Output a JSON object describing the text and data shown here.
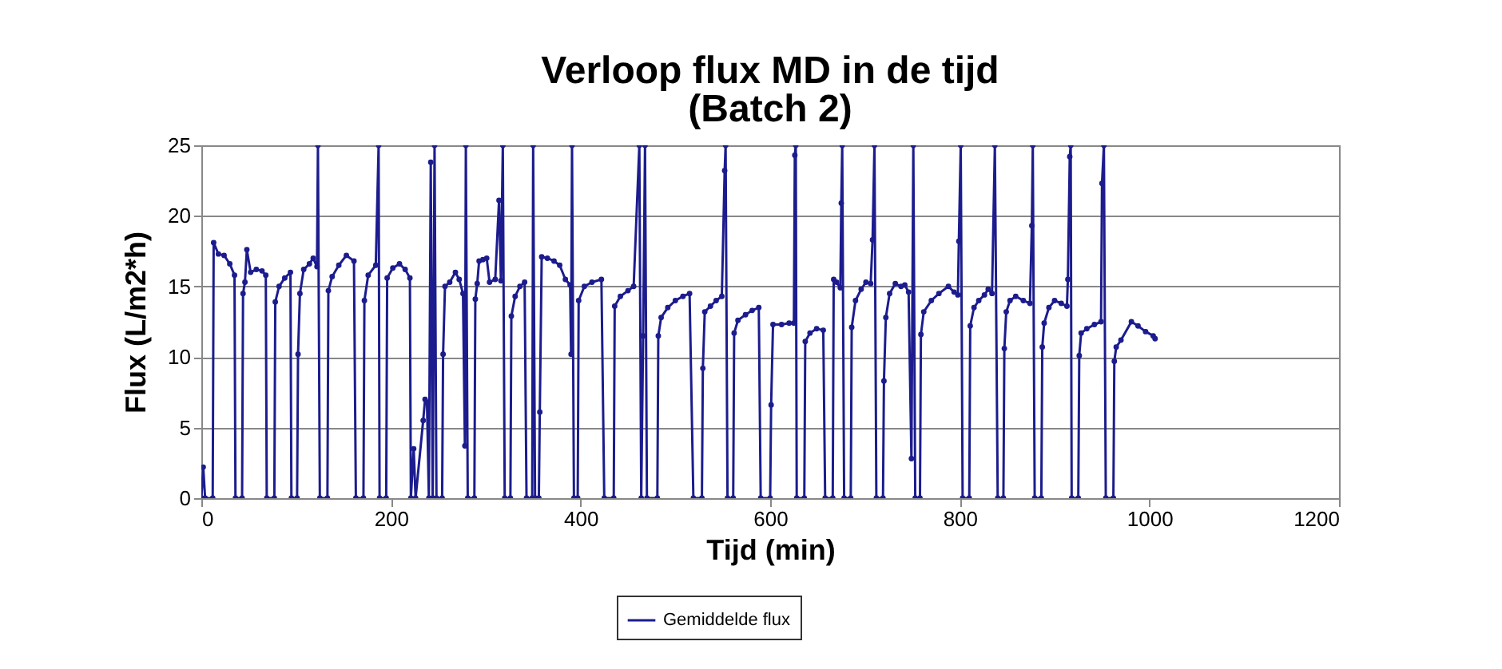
{
  "chart_data": {
    "type": "line",
    "title": "Verloop flux MD in de tijd",
    "subtitle": "(Batch 2)",
    "xlabel": "Tijd (min)",
    "ylabel": "Flux (L/m2*h)",
    "x": [
      0,
      2,
      4,
      12,
      13,
      18,
      24,
      30,
      35,
      36,
      43,
      44,
      46,
      48,
      52,
      58,
      64,
      68,
      69,
      77,
      78,
      82,
      88,
      94,
      95,
      101,
      102,
      104,
      108,
      114,
      118,
      122,
      123,
      125,
      133,
      134,
      138,
      145,
      153,
      161,
      163,
      171,
      172,
      176,
      184,
      187,
      188,
      195,
      196,
      202,
      209,
      215,
      220,
      221,
      224,
      226,
      234,
      236,
      238,
      240,
      242,
      244,
      246,
      248,
      254,
      255,
      257,
      262,
      268,
      272,
      276,
      278,
      279,
      281,
      288,
      289,
      291,
      293,
      297,
      301,
      304,
      310,
      314,
      316,
      318,
      320,
      326,
      327,
      331,
      336,
      341,
      343,
      349,
      350,
      352,
      356,
      357,
      359,
      365,
      372,
      378,
      384,
      389,
      390,
      391,
      393,
      397,
      398,
      404,
      412,
      422,
      425,
      435,
      436,
      442,
      450,
      456,
      462,
      464,
      466,
      468,
      470,
      481,
      482,
      485,
      492,
      500,
      508,
      515,
      519,
      528,
      529,
      531,
      537,
      543,
      549,
      552,
      553,
      555,
      561,
      562,
      566,
      574,
      581,
      588,
      590,
      600,
      601,
      603,
      612,
      620,
      625,
      626,
      627,
      628,
      636,
      637,
      642,
      649,
      656,
      658,
      666,
      667,
      670,
      674,
      675,
      676,
      678,
      685,
      686,
      690,
      696,
      701,
      706,
      708,
      710,
      712,
      719,
      720,
      722,
      726,
      732,
      738,
      742,
      746,
      749,
      751,
      753,
      758,
      759,
      762,
      770,
      778,
      788,
      794,
      798,
      799,
      801,
      803,
      810,
      811,
      815,
      820,
      826,
      830,
      834,
      837,
      840,
      846,
      847,
      849,
      853,
      859,
      867,
      874,
      876,
      877,
      879,
      886,
      887,
      889,
      894,
      900,
      907,
      913,
      914,
      916,
      917,
      918,
      925,
      926,
      928,
      934,
      942,
      949,
      950,
      952,
      954,
      962,
      963,
      965,
      970,
      981,
      988,
      996,
      1004,
      1006
    ],
    "series": [
      {
        "name": "Gemiddelde flux",
        "color": "#1c1c8e",
        "values": [
          0,
          2.2,
          0,
          0,
          18.1,
          17.3,
          17.2,
          16.6,
          15.8,
          0,
          0,
          14.5,
          15.3,
          17.6,
          16,
          16.2,
          16.1,
          15.8,
          0,
          0,
          13.9,
          15,
          15.6,
          16,
          0,
          0,
          10.2,
          14.5,
          16.2,
          16.6,
          17,
          16.4,
          25,
          0,
          0,
          14.7,
          15.7,
          16.5,
          17.2,
          16.8,
          0,
          0,
          14,
          15.8,
          16.5,
          25,
          0,
          0,
          15.6,
          16.3,
          16.6,
          16.2,
          15.6,
          0,
          3.5,
          0,
          5.5,
          7,
          6.8,
          0,
          23.8,
          0,
          25,
          0,
          0,
          10.2,
          15,
          15.3,
          16,
          15.5,
          14.5,
          3.7,
          25,
          0,
          0,
          14.1,
          15.2,
          16.8,
          16.9,
          17,
          15.3,
          15.5,
          21.1,
          15.4,
          25,
          0,
          0,
          12.9,
          14.3,
          15,
          15.3,
          0,
          0,
          25,
          0,
          0,
          6.1,
          17.1,
          17,
          16.8,
          16.5,
          15.5,
          15.1,
          10.2,
          25,
          0,
          0,
          14,
          15,
          15.3,
          15.5,
          0,
          0,
          13.6,
          14.3,
          14.7,
          15,
          25,
          0,
          11.5,
          25,
          0,
          0,
          11.5,
          12.8,
          13.5,
          14,
          14.3,
          14.5,
          0,
          0,
          9.2,
          13.2,
          13.6,
          14,
          14.3,
          23.2,
          25,
          0,
          0,
          11.7,
          12.6,
          13,
          13.3,
          13.5,
          0,
          0,
          6.6,
          12.3,
          12.3,
          12.4,
          12.4,
          24.3,
          25,
          0,
          0,
          11.1,
          11.7,
          12,
          11.9,
          0,
          0,
          15.5,
          15.3,
          14.9,
          20.9,
          25,
          0,
          0,
          12.1,
          14,
          14.8,
          15.3,
          15.2,
          18.3,
          25,
          0,
          0,
          8.3,
          12.8,
          14.5,
          15.2,
          15,
          15.1,
          14.6,
          2.8,
          25,
          0,
          0,
          11.6,
          13.2,
          14,
          14.5,
          15,
          14.6,
          14.4,
          18.2,
          25,
          0,
          0,
          12.2,
          13.5,
          14,
          14.4,
          14.8,
          14.5,
          25,
          0,
          0,
          10.6,
          13.2,
          14,
          14.3,
          14,
          13.8,
          19.3,
          25,
          0,
          0,
          10.7,
          12.4,
          13.5,
          14,
          13.8,
          13.6,
          15.5,
          24.2,
          25,
          0,
          0,
          10.1,
          11.7,
          12,
          12.3,
          12.5,
          22.3,
          25,
          0,
          0,
          9.7,
          10.7,
          11.2,
          12.5,
          12.2,
          11.8,
          11.5,
          11.3
        ]
      }
    ],
    "xlim": [
      0,
      1200
    ],
    "xticks": [
      0,
      200,
      400,
      600,
      800,
      1000,
      1200
    ],
    "ylim": [
      0,
      25
    ],
    "yticks": [
      0,
      5,
      10,
      15,
      20,
      25
    ],
    "grid": "y",
    "legend": "bottom",
    "marker": "circle",
    "line_style": "solid"
  }
}
